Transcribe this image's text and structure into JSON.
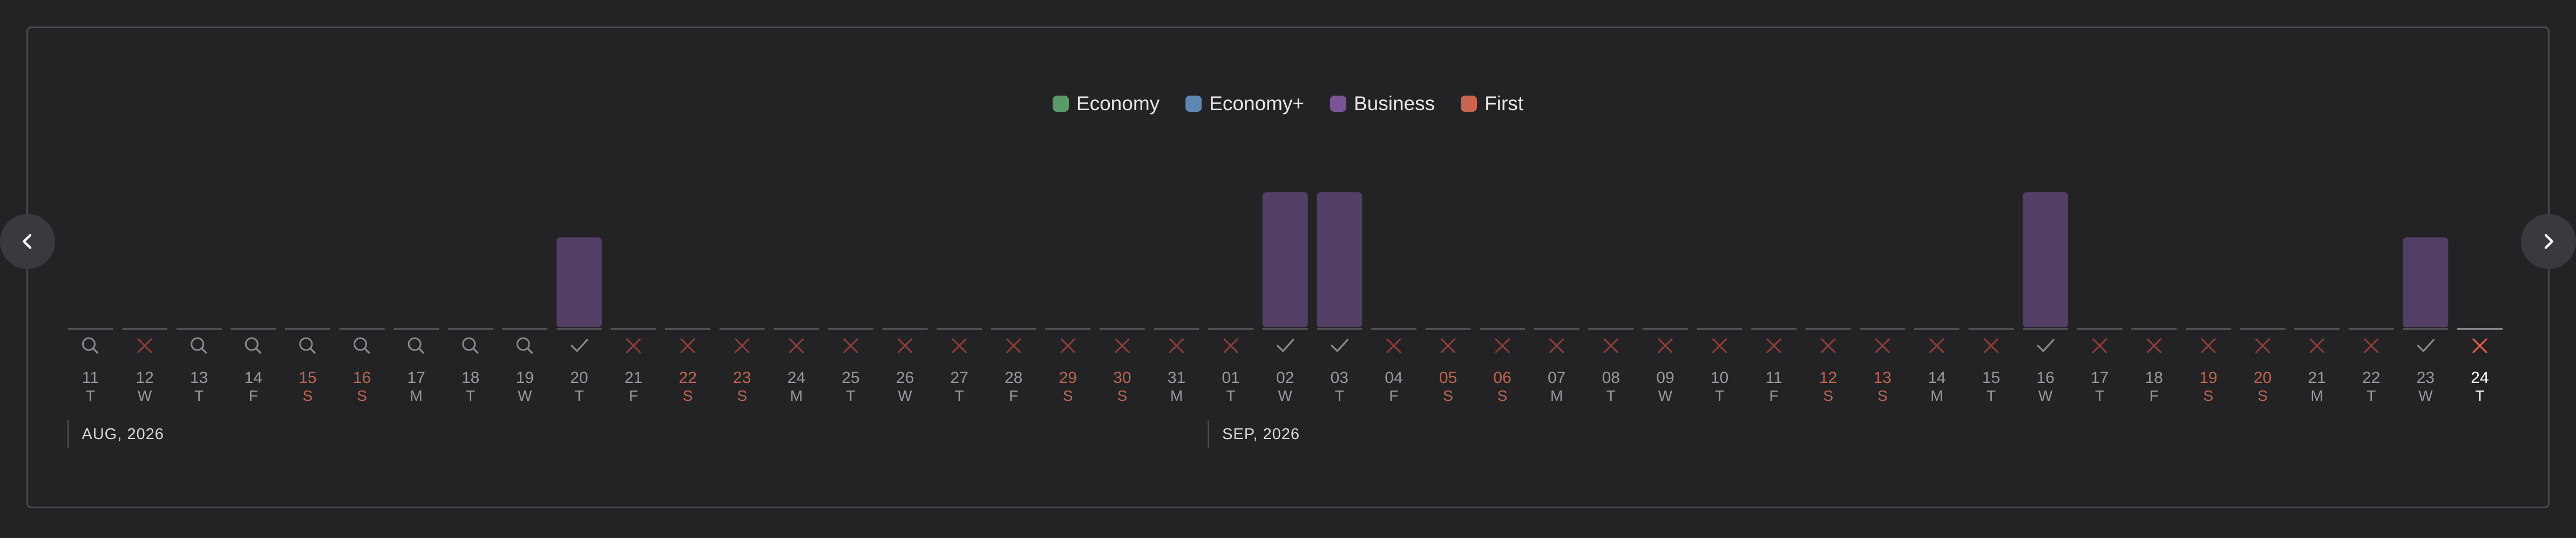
{
  "colors": {
    "economy": "#5a9a6a",
    "economy_plus": "#5f86b3",
    "business": "#7a5497",
    "business_bar": "#533e66",
    "first": "#c96450",
    "weekend": "#c0654e",
    "weekday": "#9a9a9e",
    "today": "#ffffff",
    "baseline": "#58585d",
    "icon": "#8a8a8e",
    "cross": "#8a3c36",
    "cross_today": "#e05a48"
  },
  "legend": [
    {
      "key": "economy",
      "label": "Economy"
    },
    {
      "key": "economy_plus",
      "label": "Economy+"
    },
    {
      "key": "business",
      "label": "Business"
    },
    {
      "key": "first",
      "label": "First"
    }
  ],
  "months": [
    {
      "label": "AUG, 2026",
      "start_index": 0
    },
    {
      "label": "SEP, 2026",
      "start_index": 21
    }
  ],
  "nav": {
    "prev_icon": "chevron-left-icon",
    "next_icon": "chevron-right-icon"
  },
  "chart_data": {
    "type": "bar",
    "ylim": [
      0,
      3
    ],
    "categories": [
      "11",
      "12",
      "13",
      "14",
      "15",
      "16",
      "17",
      "18",
      "19",
      "20",
      "21",
      "22",
      "23",
      "24",
      "25",
      "26",
      "27",
      "28",
      "29",
      "30",
      "31",
      "01",
      "02",
      "03",
      "04",
      "05",
      "06",
      "07",
      "08",
      "09",
      "10",
      "11",
      "12",
      "13",
      "14",
      "15",
      "16",
      "17",
      "18",
      "19",
      "20",
      "21",
      "22",
      "23",
      "24"
    ],
    "weekdays": [
      "T",
      "W",
      "T",
      "F",
      "S",
      "S",
      "M",
      "T",
      "W",
      "T",
      "F",
      "S",
      "S",
      "M",
      "T",
      "W",
      "T",
      "F",
      "S",
      "S",
      "M",
      "T",
      "W",
      "T",
      "F",
      "S",
      "S",
      "M",
      "T",
      "W",
      "T",
      "F",
      "S",
      "S",
      "M",
      "T",
      "W",
      "T",
      "F",
      "S",
      "S",
      "M",
      "T",
      "W",
      "T"
    ],
    "status": [
      "search",
      "cross",
      "search",
      "search",
      "search",
      "search",
      "search",
      "search",
      "search",
      "check",
      "cross",
      "cross",
      "cross",
      "cross",
      "cross",
      "cross",
      "cross",
      "cross",
      "cross",
      "cross",
      "cross",
      "cross",
      "check",
      "check",
      "cross",
      "cross",
      "cross",
      "cross",
      "cross",
      "cross",
      "cross",
      "cross",
      "cross",
      "cross",
      "cross",
      "cross",
      "check",
      "cross",
      "cross",
      "cross",
      "cross",
      "cross",
      "cross",
      "check",
      "cross"
    ],
    "series": [
      {
        "key": "business",
        "name": "Business",
        "values": [
          0,
          0,
          0,
          0,
          0,
          0,
          0,
          0,
          0,
          2,
          0,
          0,
          0,
          0,
          0,
          0,
          0,
          0,
          0,
          0,
          0,
          0,
          3,
          3,
          0,
          0,
          0,
          0,
          0,
          0,
          0,
          0,
          0,
          0,
          0,
          0,
          3,
          0,
          0,
          0,
          0,
          0,
          0,
          2,
          0
        ]
      }
    ],
    "selected_index": 44,
    "legend_position": "top-center",
    "grid": false
  }
}
